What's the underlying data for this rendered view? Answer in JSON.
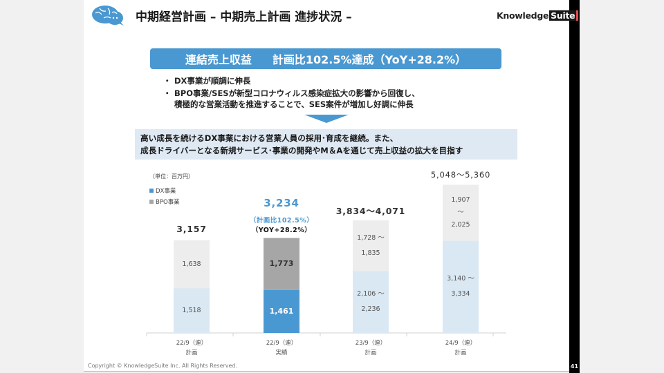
{
  "header": {
    "title": "中期経営計画 – 中期売上計画 進捗状況 –",
    "logo_text_1": "Knowledge",
    "logo_text_2": "Suite",
    "brain_icon": "brain-logo"
  },
  "headline": {
    "left": "連結売上収益",
    "right": "計画比102.5%達成（YoY+28.2%）",
    "color": "#4a98d1"
  },
  "bullets": [
    {
      "dot": "・",
      "text": "DX事業が順調に伸長"
    },
    {
      "dot": "・",
      "text": "BPO事業/SESが新型コロナウィルス感染症拡大の影響から回復し、"
    },
    {
      "dot": "",
      "text": "積極的な営業活動を推進することで、SES案件が増加し好調に伸長"
    }
  ],
  "summary": {
    "line1": "高い成長を続けるDX事業における営業人員の採用･育成を継続。また、",
    "line2": "成長ドライバーとなる新規サービス･事業の開発やM＆Aを通じて売上収益の拡大を目指す"
  },
  "chart_data": {
    "type": "bar",
    "stacked": true,
    "unit_label": "（単位：百万円）",
    "legend": [
      {
        "name": "DX事業",
        "color": "#4a98d1"
      },
      {
        "name": "BPO事業",
        "color": "#a6a6a6"
      }
    ],
    "categories": [
      {
        "line1": "22/9（連）",
        "line2": "計画"
      },
      {
        "line1": "22/9（連）",
        "line2": "実績"
      },
      {
        "line1": "23/9（連）",
        "line2": "計画"
      },
      {
        "line1": "24/9（連）",
        "line2": "計画"
      }
    ],
    "series": [
      {
        "name": "DX事業",
        "values": [
          1518,
          1461,
          2106,
          3140
        ],
        "upper": [
          1518,
          1461,
          2236,
          3334
        ],
        "labels": [
          "1,518",
          "1,461",
          "2,106 ～|2,236",
          "3,140 ～|3,334"
        ]
      },
      {
        "name": "BPO事業",
        "values": [
          1638,
          1773,
          1728,
          1907
        ],
        "upper": [
          1638,
          1773,
          1835,
          2025
        ],
        "labels": [
          "1,638",
          "1,773",
          "1,728 ～|1,835",
          "1,907|～|2,025"
        ]
      }
    ],
    "totals": [
      "3,157",
      "3,234",
      "3,834～4,071",
      "5,048～5,360"
    ],
    "highlight_index": 1,
    "highlight_notes": [
      "（計画比102.5%）",
      "（YOY+28.2%）"
    ],
    "colors": {
      "dx_plan": "#dae8f3",
      "bpo_plan": "#ededed",
      "dx_actual": "#4a98d1",
      "bpo_actual": "#a6a6a6",
      "highlight_text": "#4a98d1"
    },
    "ylim": [
      0,
      5500
    ]
  },
  "footer": {
    "copyright": "Copyright © KnowledgeSuite Inc. All Rights Reserved.",
    "page": "41"
  }
}
